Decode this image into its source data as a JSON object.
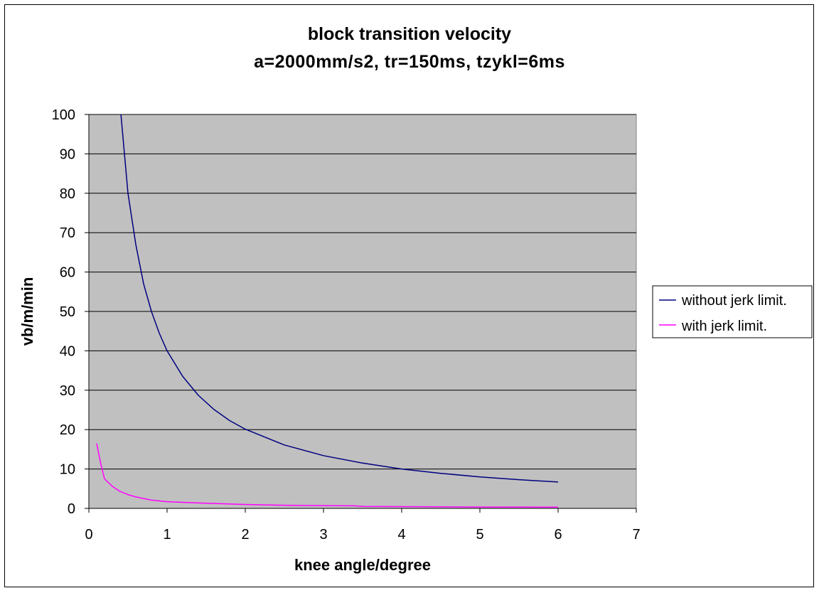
{
  "chart_data": {
    "type": "line",
    "title": [
      "block transition velocity",
      "a=2000mm/s2, tr=150ms, tzykl=6ms"
    ],
    "xlabel": "knee angle/degree",
    "ylabel": "vb/m/min",
    "xlim": [
      0,
      7
    ],
    "ylim": [
      0,
      100
    ],
    "xticks": [
      0,
      1,
      2,
      3,
      4,
      5,
      6,
      7
    ],
    "yticks": [
      0,
      10,
      20,
      30,
      40,
      50,
      60,
      70,
      80,
      90,
      100
    ],
    "grid": "horizontal",
    "plot_background": "#c0c0c0",
    "legend_position": "right",
    "series": [
      {
        "name": "without jerk limit.",
        "color": "#000080",
        "x": [
          0.41,
          0.5,
          0.6,
          0.7,
          0.8,
          0.9,
          1.0,
          1.2,
          1.4,
          1.6,
          1.8,
          2.0,
          2.5,
          3.0,
          3.5,
          4.0,
          4.5,
          5.0,
          5.5,
          6.0
        ],
        "y": [
          100,
          80,
          67,
          57,
          50,
          44.5,
          40,
          33.5,
          28.7,
          25.1,
          22.3,
          20.1,
          16.1,
          13.4,
          11.5,
          10.0,
          8.9,
          8.0,
          7.3,
          6.7
        ]
      },
      {
        "name": "with jerk limit.",
        "color": "#ff00ff",
        "x": [
          0.1,
          0.15,
          0.2,
          0.3,
          0.4,
          0.5,
          0.6,
          0.8,
          1.0,
          1.5,
          2.0,
          2.5,
          3.0,
          3.4,
          3.5,
          4.0,
          5.0,
          6.0
        ],
        "y": [
          16.5,
          11.5,
          7.5,
          5.6,
          4.3,
          3.5,
          2.9,
          2.1,
          1.7,
          1.3,
          1.0,
          0.8,
          0.7,
          0.65,
          0.5,
          0.45,
          0.35,
          0.3
        ]
      }
    ]
  }
}
